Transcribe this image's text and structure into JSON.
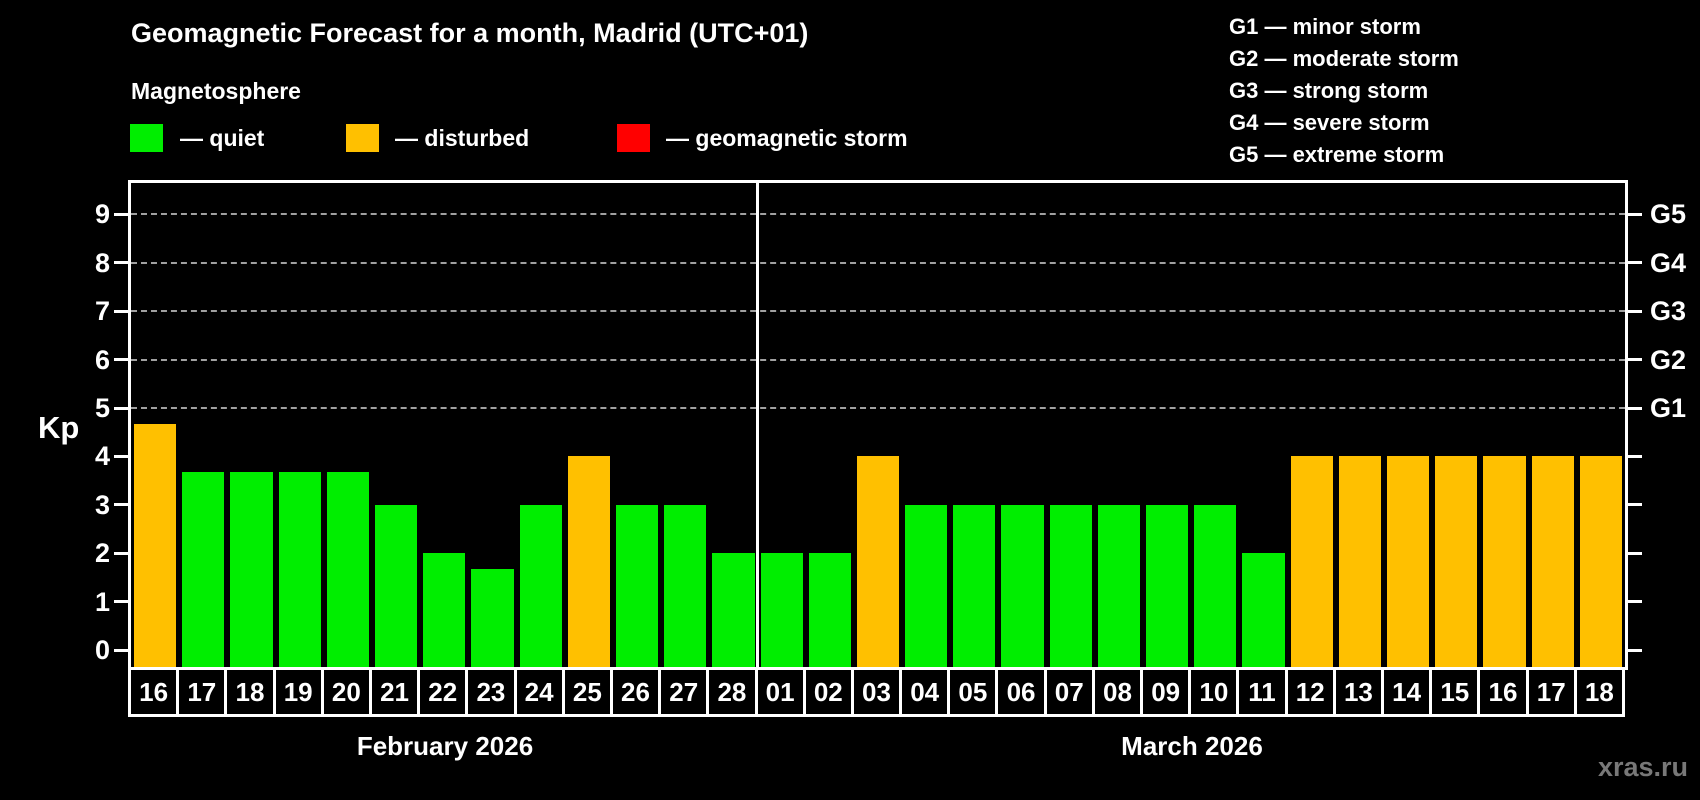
{
  "title": "Geomagnetic Forecast for a month, Madrid (UTC+01)",
  "subtitle": "Magnetosphere",
  "legend": {
    "quiet_label": "— quiet",
    "disturbed_label": "— disturbed",
    "storm_label": "— geomagnetic storm"
  },
  "g_legend": [
    "G1 — minor storm",
    "G2 — moderate storm",
    "G3 — strong storm",
    "G4 — severe storm",
    "G5 — extreme storm"
  ],
  "colors": {
    "quiet": "#00ee00",
    "disturbed": "#ffc000",
    "storm": "#ff0000",
    "grid": "#a0a0a0",
    "axis": "#ffffff",
    "watermark": "#787878"
  },
  "y_axis": {
    "label": "Kp",
    "ticks": [
      0,
      1,
      2,
      3,
      4,
      5,
      6,
      7,
      8,
      9
    ]
  },
  "right_axis": {
    "labels": [
      "G1",
      "G2",
      "G3",
      "G4",
      "G5"
    ],
    "kp_levels": [
      5,
      6,
      7,
      8,
      9
    ]
  },
  "months": [
    {
      "name": "February 2026",
      "days": 13
    },
    {
      "name": "March 2026",
      "days": 18
    }
  ],
  "watermark": "xras.ru",
  "chart_data": {
    "type": "bar",
    "title": "Geomagnetic Forecast for a month, Madrid (UTC+01)",
    "ylabel": "Kp",
    "ylim": [
      0,
      9.6
    ],
    "grid": "dashed horizontal at Kp 5-9 (G1-G5)",
    "categories": [
      "16",
      "17",
      "18",
      "19",
      "20",
      "21",
      "22",
      "23",
      "24",
      "25",
      "26",
      "27",
      "28",
      "01",
      "02",
      "03",
      "04",
      "05",
      "06",
      "07",
      "08",
      "09",
      "10",
      "11",
      "12",
      "13",
      "14",
      "15",
      "16",
      "17",
      "18"
    ],
    "values": [
      4.67,
      3.67,
      3.67,
      3.67,
      3.67,
      3,
      2,
      1.67,
      3,
      4,
      3,
      3,
      2,
      2,
      2,
      4,
      3,
      3,
      3,
      3,
      3,
      3,
      3,
      2,
      4,
      4,
      4,
      4,
      4,
      4,
      4
    ],
    "statuses": [
      "disturbed",
      "quiet",
      "quiet",
      "quiet",
      "quiet",
      "quiet",
      "quiet",
      "quiet",
      "quiet",
      "disturbed",
      "quiet",
      "quiet",
      "quiet",
      "quiet",
      "quiet",
      "disturbed",
      "quiet",
      "quiet",
      "quiet",
      "quiet",
      "quiet",
      "quiet",
      "quiet",
      "quiet",
      "disturbed",
      "disturbed",
      "disturbed",
      "disturbed",
      "disturbed",
      "disturbed",
      "disturbed"
    ]
  }
}
